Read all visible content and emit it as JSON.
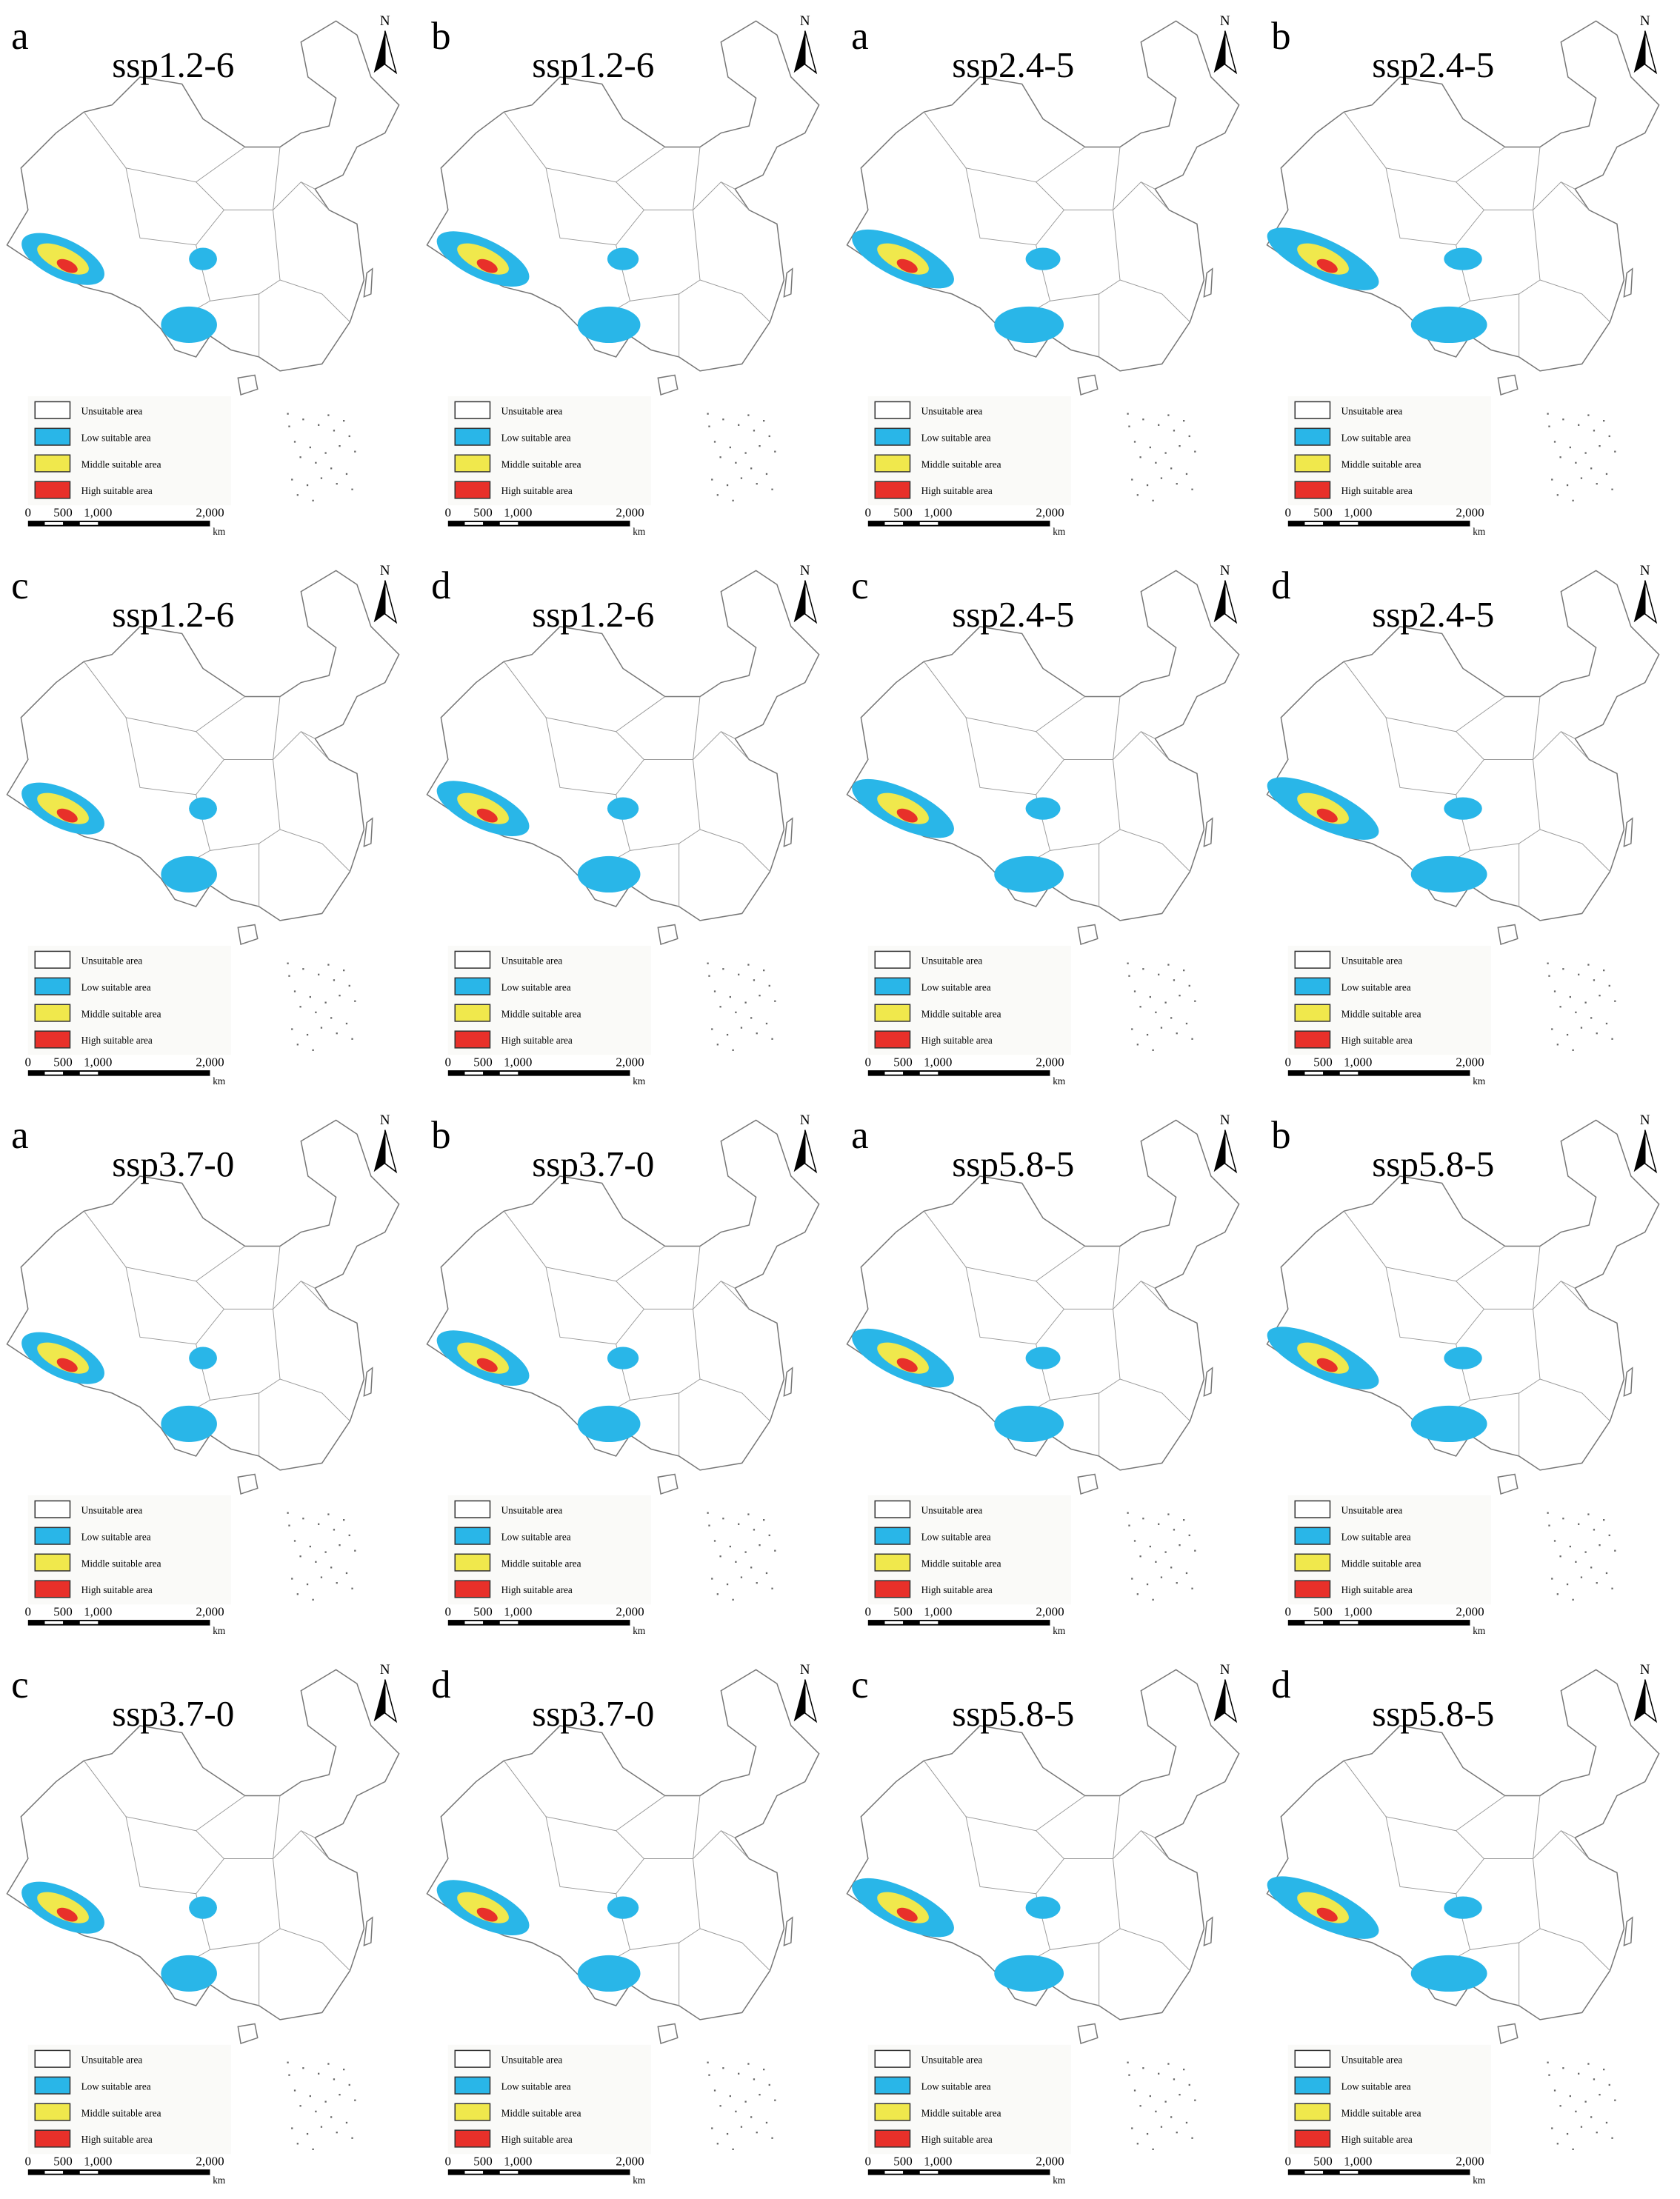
{
  "north": "N",
  "panels": [
    {
      "label": "a",
      "title": "ssp1.2-6"
    },
    {
      "label": "b",
      "title": "ssp1.2-6"
    },
    {
      "label": "a",
      "title": "ssp2.4-5"
    },
    {
      "label": "b",
      "title": "ssp2.4-5"
    },
    {
      "label": "c",
      "title": "ssp1.2-6"
    },
    {
      "label": "d",
      "title": "ssp1.2-6"
    },
    {
      "label": "c",
      "title": "ssp2.4-5"
    },
    {
      "label": "d",
      "title": "ssp2.4-5"
    },
    {
      "label": "a",
      "title": "ssp3.7-0"
    },
    {
      "label": "b",
      "title": "ssp3.7-0"
    },
    {
      "label": "a",
      "title": "ssp5.8-5"
    },
    {
      "label": "b",
      "title": "ssp5.8-5"
    },
    {
      "label": "c",
      "title": "ssp3.7-0"
    },
    {
      "label": "d",
      "title": "ssp3.7-0"
    },
    {
      "label": "c",
      "title": "ssp5.8-5"
    },
    {
      "label": "d",
      "title": "ssp5.8-5"
    }
  ],
  "legend": [
    {
      "label": "Unsuitable area",
      "color": "#ffffff"
    },
    {
      "label": "Low suitable area",
      "color": "#29b6e8"
    },
    {
      "label": "Middle suitable area",
      "color": "#f0e84c"
    },
    {
      "label": "High suitable area",
      "color": "#e8302a"
    }
  ],
  "scale_bar": {
    "labels": [
      "0",
      "500",
      "1,000",
      "2,000"
    ],
    "unit": "km"
  }
}
